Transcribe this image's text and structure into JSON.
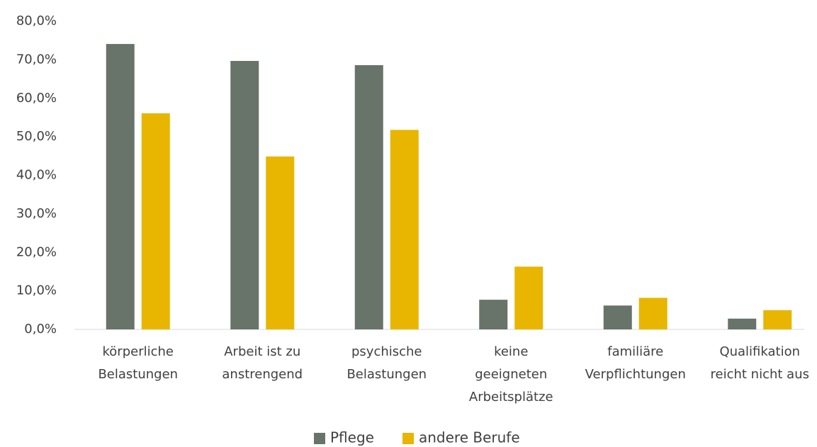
{
  "chart_data": {
    "type": "bar",
    "categories": [
      [
        "körperliche",
        "Belastungen"
      ],
      [
        "Arbeit ist zu",
        "anstrengend"
      ],
      [
        "psychische",
        "Belastungen"
      ],
      [
        "keine",
        "geeigneten",
        "Arbeitsplätze"
      ],
      [
        "familiäre",
        "Verpflichtungen"
      ],
      [
        "Qualifikation",
        "reicht nicht aus"
      ]
    ],
    "series": [
      {
        "name": "Pflege",
        "color": "#687369",
        "values": [
          74.1,
          69.7,
          68.6,
          7.7,
          6.2,
          2.8
        ]
      },
      {
        "name": "andere Berufe",
        "color": "#e8b500",
        "values": [
          56.1,
          44.9,
          51.8,
          16.3,
          8.2,
          5.0
        ]
      }
    ],
    "ylim": [
      0,
      80
    ],
    "yticks": [
      {
        "value": 0,
        "label": "0,0%"
      },
      {
        "value": 10,
        "label": "10,0%"
      },
      {
        "value": 20,
        "label": "20,0%"
      },
      {
        "value": 30,
        "label": "30,0%"
      },
      {
        "value": 40,
        "label": "40,0%"
      },
      {
        "value": 50,
        "label": "50,0%"
      },
      {
        "value": 60,
        "label": "60,0%"
      },
      {
        "value": 70,
        "label": "70,0%"
      },
      {
        "value": 80,
        "label": "80,0%"
      }
    ],
    "grid": false,
    "legend": "bottom"
  }
}
